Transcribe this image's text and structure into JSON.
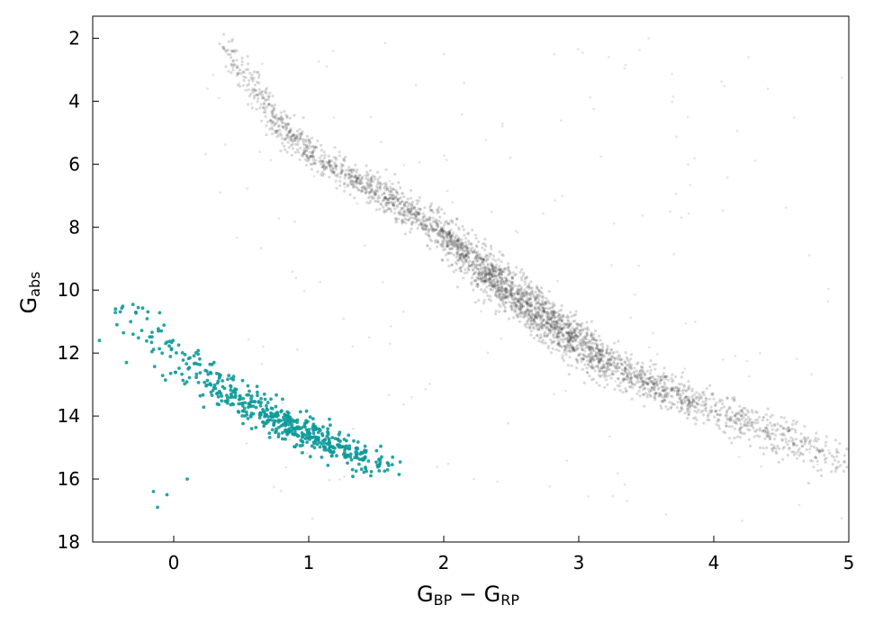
{
  "chart_data": {
    "type": "scatter",
    "title": "",
    "xlabel": {
      "main": "G",
      "sub1": "BP",
      "minus": " − ",
      "sub2": "RP",
      "text": "GBP − GRP"
    },
    "ylabel": {
      "main": "G",
      "sub": "abs",
      "text": "Gabs"
    },
    "xlim": [
      -0.6,
      5.0
    ],
    "ylim": [
      18,
      1.3
    ],
    "y_inverted": true,
    "x_ticks": [
      0,
      1,
      2,
      3,
      4,
      5
    ],
    "y_ticks": [
      2,
      4,
      6,
      8,
      10,
      12,
      14,
      16,
      18
    ],
    "grid": false,
    "legend": "none",
    "series": [
      {
        "color": "#333333",
        "opacity": 0.18,
        "description": "main sequence",
        "ridge_x": [
          0.35,
          0.6,
          0.8,
          1.0,
          1.3,
          1.6,
          2.0,
          2.3,
          2.6,
          2.9,
          3.2,
          3.6,
          4.0,
          4.4,
          4.7,
          4.95
        ],
        "ridge_y": [
          2.2,
          3.6,
          4.8,
          5.6,
          6.4,
          7.1,
          8.2,
          9.4,
          10.4,
          11.4,
          12.3,
          13.1,
          13.8,
          14.5,
          15.0,
          15.4
        ],
        "ridge_spread": [
          0.3,
          0.25,
          0.22,
          0.22,
          0.22,
          0.25,
          0.3,
          0.35,
          0.38,
          0.35,
          0.3,
          0.25,
          0.28,
          0.3,
          0.35,
          0.4
        ],
        "ridge_density": [
          60,
          90,
          120,
          140,
          160,
          220,
          320,
          420,
          460,
          420,
          320,
          240,
          180,
          130,
          90,
          50
        ]
      },
      {
        "color": "#0e9a9a",
        "opacity": 0.9,
        "description": "white dwarf sequence",
        "ridge_x": [
          -0.4,
          -0.2,
          0.0,
          0.2,
          0.4,
          0.6,
          0.8,
          1.0,
          1.2,
          1.4,
          1.65
        ],
        "ridge_y": [
          10.5,
          11.3,
          12.0,
          12.6,
          13.2,
          13.8,
          14.2,
          14.6,
          14.9,
          15.3,
          15.7
        ],
        "ridge_spread": [
          0.35,
          0.4,
          0.4,
          0.4,
          0.35,
          0.3,
          0.3,
          0.25,
          0.25,
          0.2,
          0.15
        ],
        "ridge_density": [
          12,
          20,
          30,
          40,
          55,
          75,
          90,
          95,
          80,
          55,
          20
        ],
        "outliers": [
          [
            -0.55,
            11.6
          ],
          [
            -0.15,
            16.4
          ],
          [
            -0.05,
            16.5
          ],
          [
            -0.12,
            16.9
          ],
          [
            0.1,
            16.0
          ],
          [
            -0.35,
            12.3
          ]
        ]
      }
    ]
  }
}
